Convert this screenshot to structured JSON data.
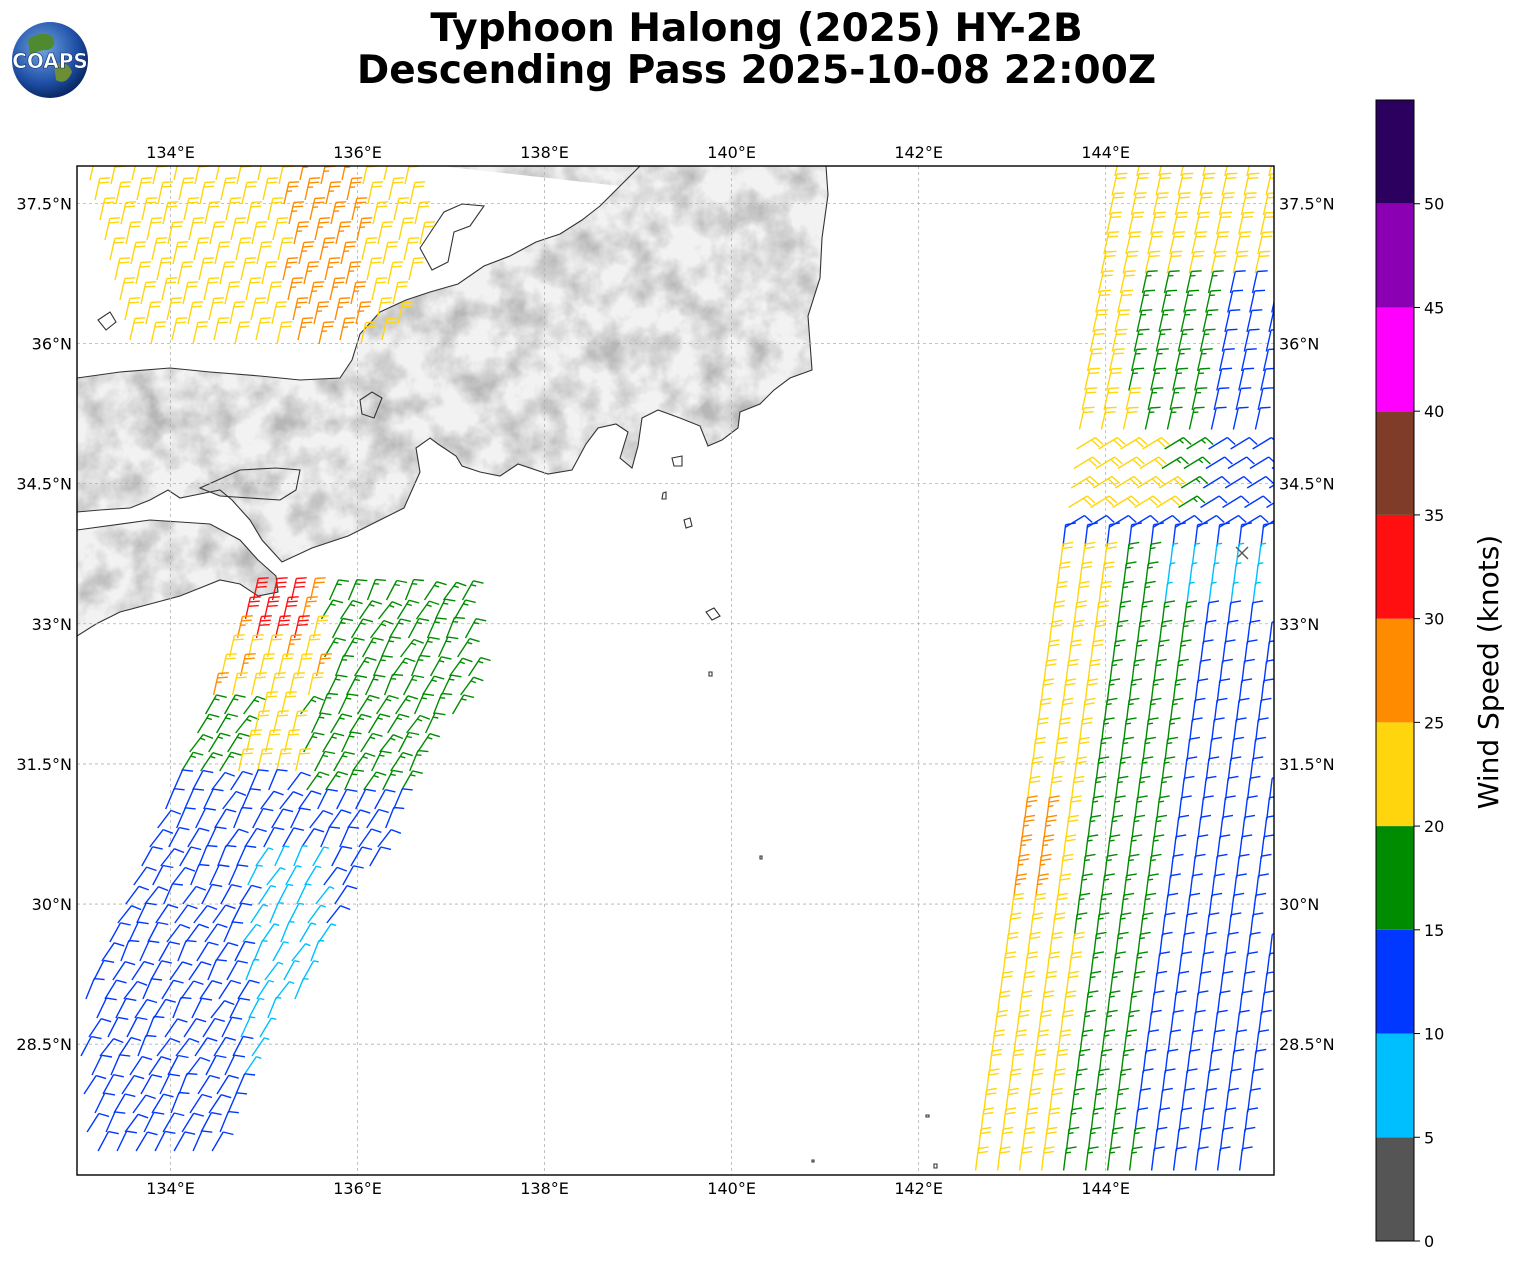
{
  "title_line1": "Typhoon Halong (2025) HY-2B",
  "title_line2": "Descending Pass 2025-10-08 22:00Z",
  "logo_text": "COAPS",
  "map": {
    "lon_ticks": [
      "134°E",
      "136°E",
      "138°E",
      "140°E",
      "142°E",
      "144°E"
    ],
    "lat_ticks": [
      "37.5°N",
      "36°N",
      "34.5°N",
      "33°N",
      "31.5°N",
      "30°N",
      "28.5°N"
    ],
    "extent": {
      "lon_min": 133,
      "lon_max": 145.8,
      "lat_min": 27.1,
      "lat_max": 37.9
    }
  },
  "colorbar": {
    "label": "Wind Speed (knots)",
    "ticks": [
      "0",
      "5",
      "10",
      "15",
      "20",
      "25",
      "30",
      "35",
      "40",
      "45",
      "50"
    ],
    "bins": [
      {
        "from": 0,
        "to": 5,
        "color": "#555555"
      },
      {
        "from": 5,
        "to": 10,
        "color": "#00bfff"
      },
      {
        "from": 10,
        "to": 15,
        "color": "#0038ff"
      },
      {
        "from": 15,
        "to": 20,
        "color": "#008c00"
      },
      {
        "from": 20,
        "to": 25,
        "color": "#ffd50d"
      },
      {
        "from": 25,
        "to": 30,
        "color": "#ff8c00"
      },
      {
        "from": 30,
        "to": 35,
        "color": "#ff0f0f"
      },
      {
        "from": 35,
        "to": 40,
        "color": "#7f3d29"
      },
      {
        "from": 40,
        "to": 45,
        "color": "#ff00ff"
      },
      {
        "from": 45,
        "to": 50,
        "color": "#8c00b3"
      },
      {
        "from": 50,
        "to": 55,
        "color": "#2c005e"
      }
    ]
  }
}
